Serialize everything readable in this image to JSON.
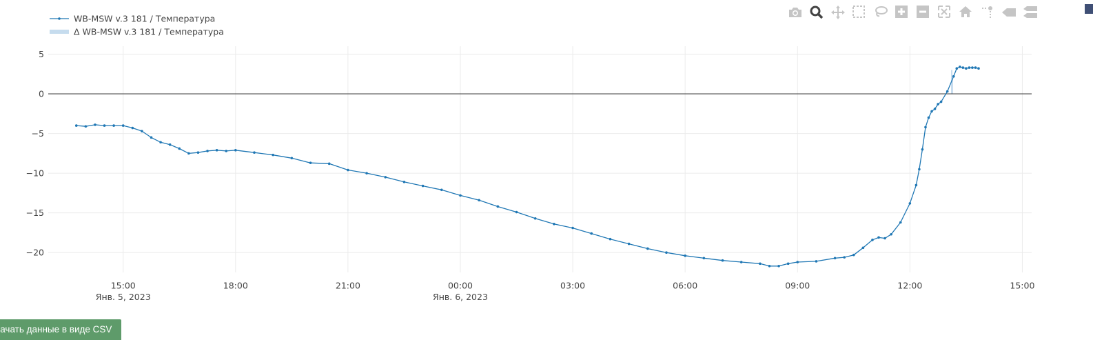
{
  "modebar": {
    "icons": [
      "camera-icon",
      "zoom-icon",
      "pan-icon",
      "box-select-icon",
      "lasso-icon",
      "zoom-in-icon",
      "zoom-out-icon",
      "autoscale-icon",
      "home-icon",
      "spike-lines-icon",
      "hover-closest-icon",
      "hover-compare-icon",
      "plotly-logo-icon"
    ],
    "active": "zoom-icon",
    "color": "#c5c5c5",
    "active_color": "#444444"
  },
  "csv_button": {
    "label": "качать данные в виде CSV",
    "color": "#5e9b6a"
  },
  "chart_data": {
    "type": "line",
    "title": "",
    "xlabel": "",
    "ylabel": "",
    "grid": true,
    "legend_position": "top-left",
    "ylim": [
      -22.5,
      6
    ],
    "y_ticks": [
      5,
      0,
      -5,
      -10,
      -15,
      -20
    ],
    "y_tick_labels": [
      "5",
      "0",
      "−5",
      "−10",
      "−15",
      "−20"
    ],
    "xlim": [
      "2023-01-05 13:00",
      "2023-01-06 15:15"
    ],
    "x_ticks": [
      {
        "t": "2023-01-05 15:00",
        "label": "15:00",
        "sub": "Янв. 5, 2023"
      },
      {
        "t": "2023-01-05 18:00",
        "label": "18:00",
        "sub": ""
      },
      {
        "t": "2023-01-05 21:00",
        "label": "21:00",
        "sub": ""
      },
      {
        "t": "2023-01-06 00:00",
        "label": "00:00",
        "sub": "Янв. 6, 2023"
      },
      {
        "t": "2023-01-06 03:00",
        "label": "03:00",
        "sub": ""
      },
      {
        "t": "2023-01-06 06:00",
        "label": "06:00",
        "sub": ""
      },
      {
        "t": "2023-01-06 09:00",
        "label": "09:00",
        "sub": ""
      },
      {
        "t": "2023-01-06 12:00",
        "label": "12:00",
        "sub": ""
      },
      {
        "t": "2023-01-06 15:00",
        "label": "15:00",
        "sub": ""
      }
    ],
    "series": [
      {
        "name": "WB-MSW v.3 181 / Температура",
        "color": "#1f77b4",
        "style": "lines+markers",
        "x": [
          "2023-01-05 13:45",
          "2023-01-05 14:00",
          "2023-01-05 14:15",
          "2023-01-05 14:30",
          "2023-01-05 14:45",
          "2023-01-05 15:00",
          "2023-01-05 15:15",
          "2023-01-05 15:30",
          "2023-01-05 15:45",
          "2023-01-05 16:00",
          "2023-01-05 16:15",
          "2023-01-05 16:30",
          "2023-01-05 16:45",
          "2023-01-05 17:00",
          "2023-01-05 17:15",
          "2023-01-05 17:30",
          "2023-01-05 17:45",
          "2023-01-05 18:00",
          "2023-01-05 18:30",
          "2023-01-05 19:00",
          "2023-01-05 19:30",
          "2023-01-05 20:00",
          "2023-01-05 20:30",
          "2023-01-05 21:00",
          "2023-01-05 21:30",
          "2023-01-05 22:00",
          "2023-01-05 22:30",
          "2023-01-05 23:00",
          "2023-01-05 23:30",
          "2023-01-06 00:00",
          "2023-01-06 00:30",
          "2023-01-06 01:00",
          "2023-01-06 01:30",
          "2023-01-06 02:00",
          "2023-01-06 02:30",
          "2023-01-06 03:00",
          "2023-01-06 03:30",
          "2023-01-06 04:00",
          "2023-01-06 04:30",
          "2023-01-06 05:00",
          "2023-01-06 05:30",
          "2023-01-06 06:00",
          "2023-01-06 06:30",
          "2023-01-06 07:00",
          "2023-01-06 07:30",
          "2023-01-06 08:00",
          "2023-01-06 08:15",
          "2023-01-06 08:30",
          "2023-01-06 08:45",
          "2023-01-06 09:00",
          "2023-01-06 09:30",
          "2023-01-06 10:00",
          "2023-01-06 10:15",
          "2023-01-06 10:30",
          "2023-01-06 10:45",
          "2023-01-06 11:00",
          "2023-01-06 11:10",
          "2023-01-06 11:20",
          "2023-01-06 11:30",
          "2023-01-06 11:45",
          "2023-01-06 12:00",
          "2023-01-06 12:10",
          "2023-01-06 12:15",
          "2023-01-06 12:20",
          "2023-01-06 12:25",
          "2023-01-06 12:30",
          "2023-01-06 12:35",
          "2023-01-06 12:40",
          "2023-01-06 12:45",
          "2023-01-06 12:50",
          "2023-01-06 13:00",
          "2023-01-06 13:10",
          "2023-01-06 13:15",
          "2023-01-06 13:20",
          "2023-01-06 13:25",
          "2023-01-06 13:30",
          "2023-01-06 13:35",
          "2023-01-06 13:40",
          "2023-01-06 13:45",
          "2023-01-06 13:50"
        ],
        "y": [
          -4.0,
          -4.1,
          -3.9,
          -4.0,
          -4.0,
          -4.0,
          -4.3,
          -4.7,
          -5.5,
          -6.1,
          -6.4,
          -6.9,
          -7.5,
          -7.4,
          -7.2,
          -7.1,
          -7.2,
          -7.1,
          -7.4,
          -7.7,
          -8.1,
          -8.7,
          -8.8,
          -9.6,
          -10.0,
          -10.5,
          -11.1,
          -11.6,
          -12.1,
          -12.8,
          -13.4,
          -14.2,
          -14.9,
          -15.7,
          -16.4,
          -16.9,
          -17.6,
          -18.3,
          -18.9,
          -19.5,
          -20.0,
          -20.4,
          -20.7,
          -21.0,
          -21.2,
          -21.4,
          -21.7,
          -21.7,
          -21.4,
          -21.2,
          -21.1,
          -20.7,
          -20.6,
          -20.3,
          -19.4,
          -18.4,
          -18.1,
          -18.2,
          -17.7,
          -16.2,
          -13.8,
          -11.5,
          -9.5,
          -7.0,
          -4.2,
          -3.0,
          -2.2,
          -1.9,
          -1.3,
          -1.0,
          0.3,
          2.2,
          3.2,
          3.4,
          3.3,
          3.2,
          3.3,
          3.3,
          3.3,
          3.2
        ]
      },
      {
        "name": "Δ WB-MSW v.3 181 / Температура",
        "color": "#c6dcee",
        "style": "bars",
        "x": [
          "2023-01-06 13:07",
          "2023-01-06 13:08"
        ],
        "y": [
          3.0,
          2.2
        ]
      }
    ]
  }
}
